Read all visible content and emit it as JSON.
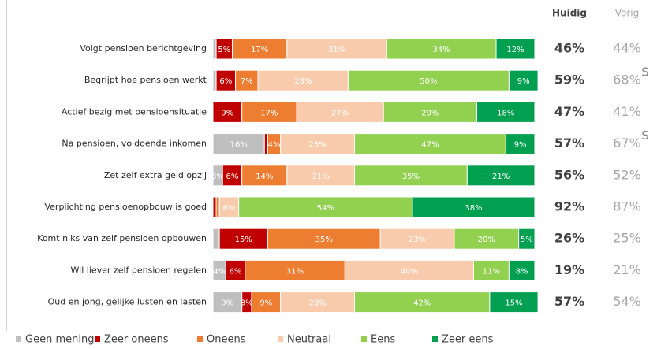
{
  "chart_data": {
    "type": "stacked-bar-horizontal",
    "categories": [
      "Volgt pensioen berichtgeving",
      "Begrijpt hoe pensioen werkt",
      "Actief bezig met pensioensituatie",
      "Na pensioen, voldoende inkomen",
      "Zet zelf extra geld opzij",
      "Verplichting pensioenopbouw is goed",
      "Komt niks van zelf pensioen opbouwen",
      "Wil liever zelf pensioen regelen",
      "Oud en jong, gelijke lusten en lasten"
    ],
    "xlim": [
      0,
      100
    ],
    "series": [
      {
        "name": "Geen mening",
        "color": "#bfbfbf",
        "values": [
          1,
          1,
          0,
          16,
          3,
          0,
          2,
          4,
          9
        ],
        "value_labels": [
          null,
          null,
          null,
          "16%",
          "3%",
          null,
          null,
          "4%",
          "9%"
        ]
      },
      {
        "name": "Zeer oneens",
        "color": "#c00000",
        "values": [
          5,
          6,
          9,
          1,
          6,
          1,
          15,
          6,
          3
        ],
        "value_labels": [
          "5%",
          "6%",
          "9%",
          null,
          "6%",
          null,
          "15%",
          "6%",
          "3%"
        ]
      },
      {
        "name": "Oneens",
        "color": "#ed7d31",
        "values": [
          17,
          7,
          17,
          4,
          14,
          1,
          35,
          31,
          9
        ],
        "value_labels": [
          "17%",
          "7%",
          "17%",
          "4%",
          "14%",
          null,
          "35%",
          "31%",
          "9%"
        ]
      },
      {
        "name": "Neutraal",
        "color": "#f8cbad",
        "values": [
          31,
          28,
          27,
          23,
          21,
          6,
          23,
          40,
          23
        ],
        "value_labels": [
          "31%",
          "28%",
          "27%",
          "23%",
          "21%",
          "6%",
          "23%",
          "40%",
          "23%"
        ]
      },
      {
        "name": "Eens",
        "color": "#92d050",
        "values": [
          34,
          50,
          29,
          47,
          35,
          54,
          20,
          11,
          42
        ],
        "value_labels": [
          "34%",
          "50%",
          "29%",
          "47%",
          "35%",
          "54%",
          "20%",
          "11%",
          "42%"
        ]
      },
      {
        "name": "Zeer eens",
        "color": "#00a050",
        "values": [
          12,
          9,
          18,
          9,
          21,
          38,
          5,
          8,
          15
        ],
        "value_labels": [
          "12%",
          "9%",
          "18%",
          "9%",
          "21%",
          "38%",
          "5%",
          "8%",
          "15%"
        ]
      }
    ],
    "columns": [
      {
        "name": "Huidig",
        "values": [
          46,
          59,
          47,
          57,
          56,
          92,
          26,
          19,
          57
        ],
        "value_labels": [
          "46%",
          "59%",
          "47%",
          "57%",
          "56%",
          "92%",
          "26%",
          "19%",
          "57%"
        ]
      },
      {
        "name": "Vorig",
        "values": [
          44,
          68,
          41,
          67,
          52,
          87,
          25,
          21,
          54
        ],
        "value_labels": [
          "44%",
          "68%",
          "41%",
          "67%",
          "52%",
          "87%",
          "25%",
          "21%",
          "54%"
        ]
      }
    ],
    "annotations": [
      null,
      "S",
      null,
      "S",
      null,
      null,
      null,
      null,
      null
    ]
  }
}
